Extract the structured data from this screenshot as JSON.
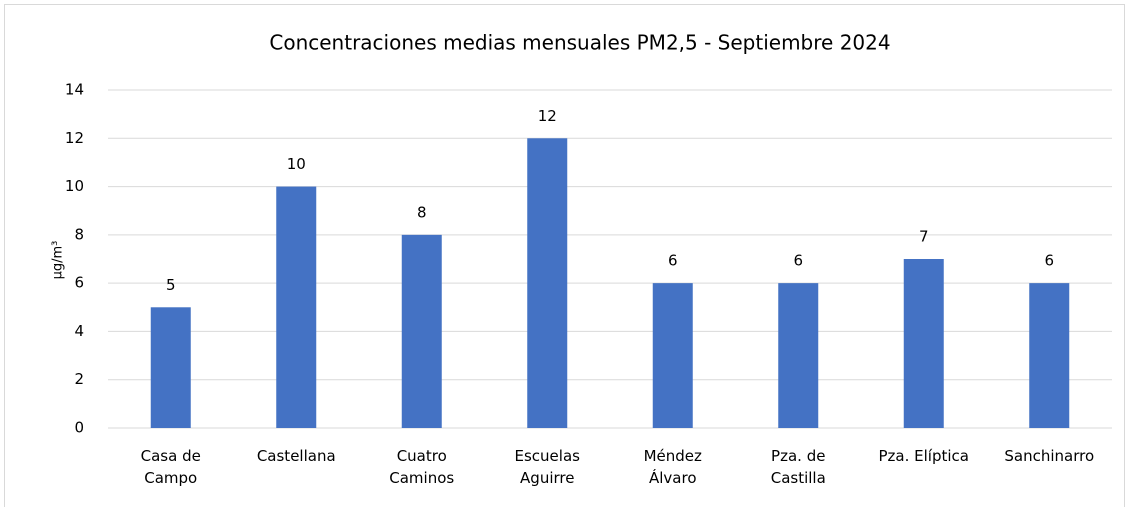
{
  "chart_data": {
    "type": "bar",
    "title": "Concentraciones medias mensuales PM2,5 - Septiembre 2024",
    "y_axis_label": "µg/m³",
    "categories": [
      "Casa de\nCampo",
      "Castellana",
      "Cuatro\nCaminos",
      "Escuelas\nAguirre",
      "Méndez\nÁlvaro",
      "Pza. de\nCastilla",
      "Pza. Elíptica",
      "Sanchinarro"
    ],
    "values": [
      5,
      10,
      8,
      12,
      6,
      6,
      7,
      6
    ],
    "color": "#4472c4",
    "ylim": [
      0,
      14
    ],
    "yticks": [
      0,
      2,
      4,
      6,
      8,
      10,
      12,
      14
    ],
    "grid": true
  }
}
